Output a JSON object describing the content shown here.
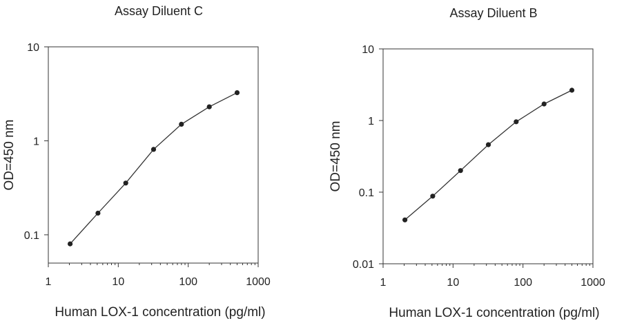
{
  "chart_data": [
    {
      "type": "line",
      "title": "Assay Diluent C",
      "xlabel": "Human LOX-1 concentration (pg/ml)",
      "ylabel": "OD=450 nm",
      "xscale": "log",
      "yscale": "log",
      "xlim": [
        1,
        1000
      ],
      "ylim": [
        0.05,
        10
      ],
      "xticks": [
        1,
        10,
        100,
        1000
      ],
      "xtick_labels": [
        "1",
        "10",
        "100",
        "1000"
      ],
      "yticks": [
        0.1,
        1,
        10
      ],
      "ytick_labels": [
        "0.1",
        "1",
        "10"
      ],
      "grid": false,
      "legend": "none",
      "line_color": "#333333",
      "marker_color": "#222222",
      "series": [
        {
          "x": [
            2.05,
            5.12,
            12.8,
            32,
            80,
            200,
            500
          ],
          "y": [
            0.08,
            0.17,
            0.355,
            0.81,
            1.5,
            2.3,
            3.25
          ]
        }
      ]
    },
    {
      "type": "line",
      "title": "Assay Diluent B",
      "xlabel": "Human LOX-1 concentration (pg/ml)",
      "ylabel": "OD=450 nm",
      "xscale": "log",
      "yscale": "log",
      "xlim": [
        1,
        1000
      ],
      "ylim": [
        0.01,
        10
      ],
      "xticks": [
        1,
        10,
        100,
        1000
      ],
      "xtick_labels": [
        "1",
        "10",
        "100",
        "1000"
      ],
      "yticks": [
        0.01,
        0.1,
        1,
        10
      ],
      "ytick_labels": [
        "0.01",
        "0.1",
        "1",
        "10"
      ],
      "grid": false,
      "legend": "none",
      "line_color": "#333333",
      "marker_color": "#222222",
      "series": [
        {
          "x": [
            2.05,
            5.12,
            12.8,
            32,
            80,
            200,
            500
          ],
          "y": [
            0.041,
            0.088,
            0.2,
            0.46,
            0.96,
            1.7,
            2.65
          ]
        }
      ]
    }
  ]
}
